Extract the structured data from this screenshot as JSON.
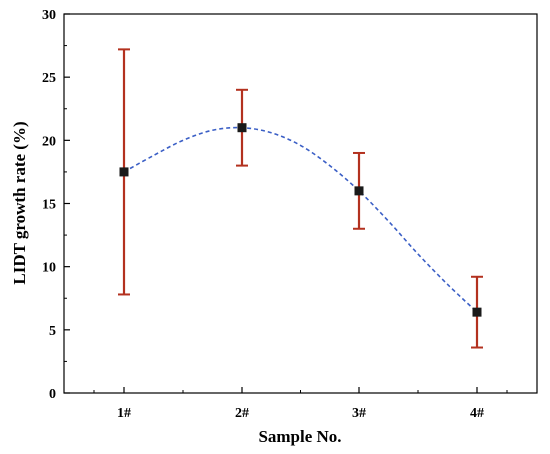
{
  "chart_data": {
    "type": "scatter",
    "xlabel": "Sample No.",
    "ylabel": "LIDT growth rate (%)",
    "categories": [
      "1#",
      "2#",
      "3#",
      "4#"
    ],
    "ylim": [
      0,
      30
    ],
    "yticks": [
      0,
      5,
      10,
      15,
      20,
      25,
      30
    ],
    "grid": false,
    "legend": "none",
    "series": [
      {
        "values": [
          17.5,
          21.0,
          16.0,
          6.4
        ],
        "error_low": [
          7.8,
          18.0,
          13.0,
          3.6
        ],
        "error_high": [
          27.2,
          24.0,
          19.0,
          9.2
        ]
      }
    ],
    "fit_curve": {
      "style": "dashed",
      "x": [
        1.0,
        1.25,
        1.5,
        1.75,
        2.0,
        2.25,
        2.5,
        2.75,
        3.0,
        3.25,
        3.5,
        3.75,
        4.0
      ],
      "y": [
        17.5,
        18.8,
        20.0,
        20.8,
        21.0,
        20.6,
        19.6,
        18.0,
        16.0,
        13.6,
        11.0,
        8.6,
        6.4
      ]
    },
    "colors": {
      "marker": "#1a1a1a",
      "error_bar": "#b3311f",
      "fit_line": "#3b5fc6",
      "axis": "#000000"
    }
  }
}
